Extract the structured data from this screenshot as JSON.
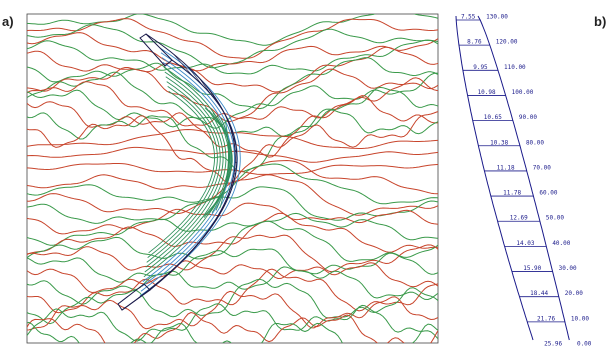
{
  "panels": {
    "a": {
      "label": "a)"
    },
    "b": {
      "label": "b)",
      "levels": [
        {
          "elevation": "130.00",
          "thickness": "7.55"
        },
        {
          "elevation": "120.00",
          "thickness": "8.76"
        },
        {
          "elevation": "110.00",
          "thickness": "9.95"
        },
        {
          "elevation": "100.00",
          "thickness": "10.98"
        },
        {
          "elevation": "90.00",
          "thickness": "10.65"
        },
        {
          "elevation": "80.00",
          "thickness": "10.38"
        },
        {
          "elevation": "70.00",
          "thickness": "11.18"
        },
        {
          "elevation": "60.00",
          "thickness": "11.78"
        },
        {
          "elevation": "50.00",
          "thickness": "12.69"
        },
        {
          "elevation": "40.00",
          "thickness": "14.03"
        },
        {
          "elevation": "30.00",
          "thickness": "15.90"
        },
        {
          "elevation": "20.00",
          "thickness": "18.44"
        },
        {
          "elevation": "10.00",
          "thickness": "21.76"
        },
        {
          "elevation": "0.00",
          "thickness": "25.96"
        }
      ]
    }
  },
  "colors": {
    "contour_red": "#c8452c",
    "contour_green": "#3a9a4a",
    "dam_blue": "#3a88c8",
    "dam_green": "#2e8f5a",
    "outline": "#1a1a4a",
    "section_ink": "#1a1a8a"
  }
}
